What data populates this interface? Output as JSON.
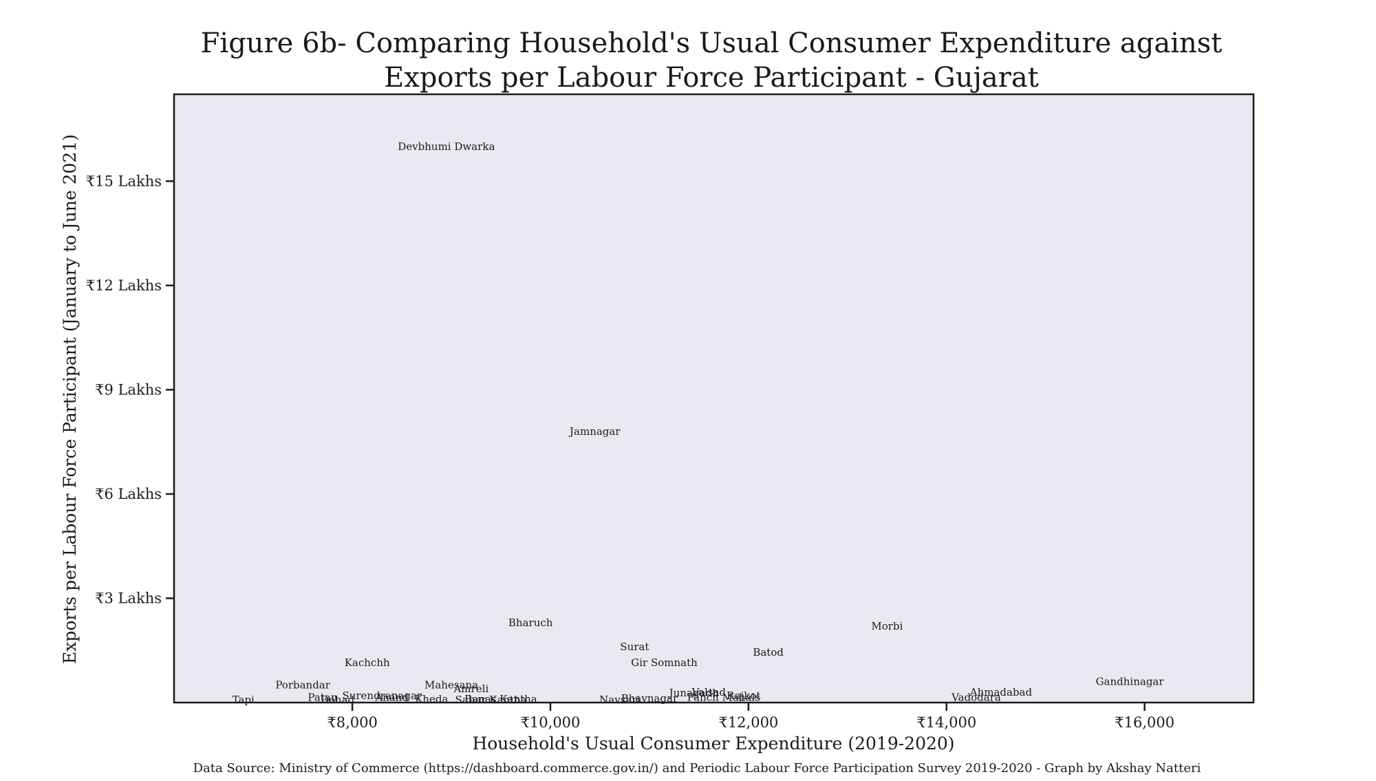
{
  "chart_data": {
    "type": "scatter",
    "title": "Figure 6b- Comparing Household's Usual Consumer Expenditure against Exports per Labour Force Participant  - Gujarat",
    "title_lines": [
      "Figure 6b- Comparing Household's Usual Consumer Expenditure against",
      "Exports per Labour Force Participant  - Gujarat"
    ],
    "xlabel": "Household's Usual Consumer Expenditure (2019-2020)",
    "ylabel": "Exports per Labour Force Participant (January to June 2021)",
    "xlim": [
      6200,
      17100
    ],
    "ylim": [
      0,
      17.5
    ],
    "x_ticks": [
      {
        "value": 8000,
        "label": "₹8,000"
      },
      {
        "value": 10000,
        "label": "₹10,000"
      },
      {
        "value": 12000,
        "label": "₹12,000"
      },
      {
        "value": 14000,
        "label": "₹14,000"
      },
      {
        "value": 16000,
        "label": "₹16,000"
      }
    ],
    "y_ticks": [
      {
        "value": 3,
        "label": "₹3 Lakhs"
      },
      {
        "value": 6,
        "label": "₹6 Lakhs"
      },
      {
        "value": 9,
        "label": "₹9 Lakhs"
      },
      {
        "value": 12,
        "label": "₹12 Lakhs"
      },
      {
        "value": 15,
        "label": "₹15 Lakhs"
      }
    ],
    "y_unit": "Lakhs",
    "marker": "none (text labels only)",
    "grid": false,
    "plot_background": "#e9e9f2",
    "points": [
      {
        "label": "Devbhumi Dwarka",
        "x": 8950,
        "y": 16.0
      },
      {
        "label": "Jamnagar",
        "x": 10450,
        "y": 7.8
      },
      {
        "label": "Bharuch",
        "x": 9800,
        "y": 2.3
      },
      {
        "label": "Morbi",
        "x": 13400,
        "y": 2.2
      },
      {
        "label": "Surat",
        "x": 10850,
        "y": 1.6
      },
      {
        "label": "Batod",
        "x": 12200,
        "y": 1.45
      },
      {
        "label": "Gir Somnath",
        "x": 11150,
        "y": 1.15
      },
      {
        "label": "Kachchh",
        "x": 8150,
        "y": 1.15
      },
      {
        "label": "Gandhinagar",
        "x": 15850,
        "y": 0.6
      },
      {
        "label": "Porbandar",
        "x": 7500,
        "y": 0.5
      },
      {
        "label": "Mahesana",
        "x": 9000,
        "y": 0.5
      },
      {
        "label": "Amreli",
        "x": 9200,
        "y": 0.4
      },
      {
        "label": "Ahmadabad",
        "x": 14550,
        "y": 0.3
      },
      {
        "label": "Junagadh",
        "x": 11450,
        "y": 0.28
      },
      {
        "label": "Valsad",
        "x": 11600,
        "y": 0.3
      },
      {
        "label": "Rajkot",
        "x": 11950,
        "y": 0.2
      },
      {
        "label": "Surendranagar",
        "x": 8300,
        "y": 0.2
      },
      {
        "label": "Anand",
        "x": 8400,
        "y": 0.15
      },
      {
        "label": "Panch Mahals",
        "x": 11750,
        "y": 0.15
      },
      {
        "label": "Patan",
        "x": 7700,
        "y": 0.15
      },
      {
        "label": "Bhavnagar",
        "x": 11000,
        "y": 0.12
      },
      {
        "label": "Vadodara",
        "x": 14300,
        "y": 0.15
      },
      {
        "label": "Kheda",
        "x": 8800,
        "y": 0.1
      },
      {
        "label": "Banas Kantha",
        "x": 9500,
        "y": 0.1
      },
      {
        "label": "Sabar Kantha",
        "x": 9400,
        "y": 0.08
      },
      {
        "label": "Dohad",
        "x": 7850,
        "y": 0.08
      },
      {
        "label": "Navsari",
        "x": 10700,
        "y": 0.08
      },
      {
        "label": "Tapi",
        "x": 6900,
        "y": 0.08
      }
    ]
  },
  "footer": {
    "source": "Data Source:  Ministry of Commerce (https://dashboard.commerce.gov.in/) and Periodic Labour Force Participation Survey 2019-2020 - Graph by Akshay Natteri"
  }
}
